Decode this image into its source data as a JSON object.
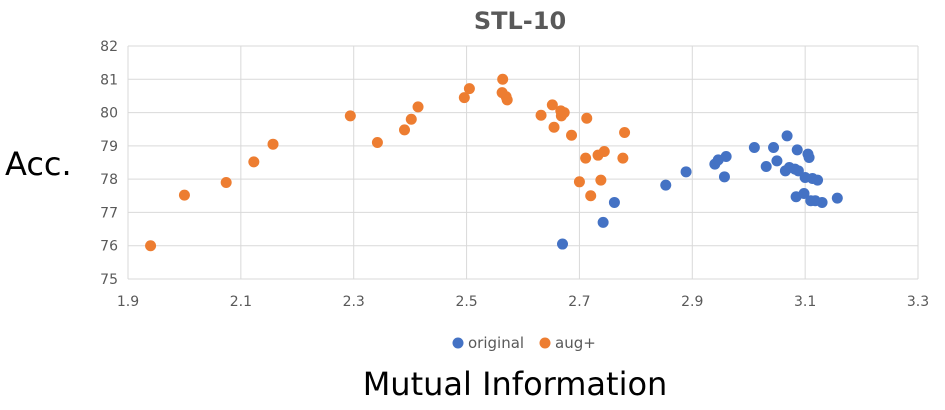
{
  "chart_data": {
    "type": "scatter",
    "title": "STL-10",
    "xlabel": "Mutual Information",
    "ylabel": "Acc.",
    "xlim": [
      1.9,
      3.3
    ],
    "ylim": [
      75,
      82
    ],
    "xticks": [
      "1.9",
      "2.1",
      "2.3",
      "2.5",
      "2.7",
      "2.9",
      "3.1",
      "3.3"
    ],
    "yticks": [
      "75",
      "76",
      "77",
      "78",
      "79",
      "80",
      "81",
      "82"
    ],
    "grid": true,
    "legend_position": "bottom",
    "series": [
      {
        "name": "original",
        "color": "#4472C4",
        "points": [
          [
            2.67,
            76.05
          ],
          [
            2.742,
            76.7
          ],
          [
            2.762,
            77.3
          ],
          [
            2.853,
            77.82
          ],
          [
            2.889,
            78.22
          ],
          [
            2.94,
            78.45
          ],
          [
            2.946,
            78.58
          ],
          [
            2.957,
            78.07
          ],
          [
            2.96,
            78.68
          ],
          [
            3.01,
            78.95
          ],
          [
            3.031,
            78.38
          ],
          [
            3.044,
            78.95
          ],
          [
            3.05,
            78.55
          ],
          [
            3.065,
            78.25
          ],
          [
            3.068,
            79.3
          ],
          [
            3.072,
            78.35
          ],
          [
            3.082,
            78.3
          ],
          [
            3.086,
            78.88
          ],
          [
            3.088,
            78.25
          ],
          [
            3.084,
            77.47
          ],
          [
            3.098,
            77.57
          ],
          [
            3.1,
            78.05
          ],
          [
            3.105,
            78.75
          ],
          [
            3.107,
            78.65
          ],
          [
            3.11,
            77.35
          ],
          [
            3.113,
            78.02
          ],
          [
            3.118,
            77.35
          ],
          [
            3.122,
            77.97
          ],
          [
            3.13,
            77.3
          ],
          [
            3.157,
            77.43
          ]
        ]
      },
      {
        "name": "aug+",
        "color": "#ED7D31",
        "points": [
          [
            1.94,
            76.0
          ],
          [
            2.0,
            77.52
          ],
          [
            2.074,
            77.9
          ],
          [
            2.123,
            78.52
          ],
          [
            2.157,
            79.05
          ],
          [
            2.294,
            79.9
          ],
          [
            2.342,
            79.1
          ],
          [
            2.39,
            79.48
          ],
          [
            2.402,
            79.8
          ],
          [
            2.414,
            80.17
          ],
          [
            2.496,
            80.45
          ],
          [
            2.505,
            80.72
          ],
          [
            2.564,
            81.0
          ],
          [
            2.563,
            80.6
          ],
          [
            2.57,
            80.48
          ],
          [
            2.572,
            80.38
          ],
          [
            2.632,
            79.92
          ],
          [
            2.652,
            80.23
          ],
          [
            2.655,
            79.56
          ],
          [
            2.667,
            80.05
          ],
          [
            2.668,
            79.9
          ],
          [
            2.673,
            80.0
          ],
          [
            2.686,
            79.32
          ],
          [
            2.7,
            77.92
          ],
          [
            2.711,
            78.63
          ],
          [
            2.713,
            79.83
          ],
          [
            2.72,
            77.5
          ],
          [
            2.733,
            78.72
          ],
          [
            2.738,
            77.97
          ],
          [
            2.744,
            78.83
          ],
          [
            2.777,
            78.63
          ],
          [
            2.78,
            79.4
          ]
        ]
      }
    ]
  }
}
